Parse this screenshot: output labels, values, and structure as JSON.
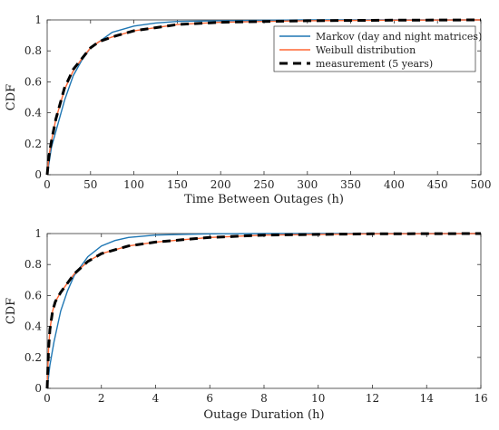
{
  "chart_data": [
    {
      "type": "line",
      "xlabel": "Time Between Outages (h)",
      "ylabel": "CDF",
      "xlim": [
        0,
        500
      ],
      "ylim": [
        0,
        1
      ],
      "xticks": [
        0,
        50,
        100,
        150,
        200,
        250,
        300,
        350,
        400,
        450,
        500
      ],
      "yticks": [
        0,
        0.2,
        0.4,
        0.6,
        0.8,
        1
      ],
      "ytick_labels": [
        "0",
        "0.2",
        "0.4",
        "0.6",
        "0.8",
        "1"
      ],
      "grid": false,
      "legend_position": "top-right",
      "series": [
        {
          "name": "Markov (day and night matrices)",
          "color": "#1f77b4",
          "dash": "solid",
          "x": [
            0,
            5,
            10,
            20,
            30,
            40,
            50,
            60,
            75,
            100,
            125,
            150,
            200,
            300,
            500
          ],
          "y": [
            0,
            0.18,
            0.28,
            0.48,
            0.64,
            0.74,
            0.82,
            0.86,
            0.92,
            0.96,
            0.98,
            0.99,
            0.995,
            1.0,
            1.0
          ]
        },
        {
          "name": "Weibull distribution",
          "color": "#ff6633",
          "dash": "solid",
          "x": [
            0,
            2,
            5,
            10,
            20,
            30,
            40,
            50,
            60,
            75,
            100,
            125,
            150,
            200,
            250,
            300,
            400,
            500
          ],
          "y": [
            0,
            0.12,
            0.22,
            0.36,
            0.55,
            0.67,
            0.75,
            0.82,
            0.86,
            0.89,
            0.93,
            0.95,
            0.97,
            0.985,
            0.99,
            0.995,
            0.998,
            1.0
          ]
        },
        {
          "name": "measurement (5 years)",
          "color": "#000000",
          "dash": "dashed",
          "x": [
            0,
            2,
            5,
            10,
            20,
            30,
            40,
            50,
            60,
            75,
            100,
            125,
            150,
            200,
            250,
            300,
            400,
            500
          ],
          "y": [
            0,
            0.12,
            0.22,
            0.36,
            0.56,
            0.68,
            0.75,
            0.82,
            0.86,
            0.89,
            0.93,
            0.95,
            0.97,
            0.985,
            0.99,
            0.995,
            0.998,
            1.0
          ]
        }
      ]
    },
    {
      "type": "line",
      "xlabel": "Outage Duration (h)",
      "ylabel": "CDF",
      "xlim": [
        0,
        16
      ],
      "ylim": [
        0,
        1
      ],
      "xticks": [
        0,
        2,
        4,
        6,
        8,
        10,
        12,
        14,
        16
      ],
      "yticks": [
        0,
        0.2,
        0.4,
        0.6,
        0.8,
        1
      ],
      "ytick_labels": [
        "0",
        "0.2",
        "0.4",
        "0.6",
        "0.8",
        "1"
      ],
      "grid": false,
      "series": [
        {
          "name": "Markov (day and night matrices)",
          "color": "#1f77b4",
          "dash": "solid",
          "x": [
            0,
            0.1,
            0.25,
            0.5,
            0.75,
            1,
            1.5,
            2,
            2.5,
            3,
            4,
            5,
            6,
            8,
            10,
            16
          ],
          "y": [
            0,
            0.15,
            0.3,
            0.5,
            0.63,
            0.73,
            0.85,
            0.92,
            0.955,
            0.975,
            0.99,
            0.995,
            0.998,
            1.0,
            1.0,
            1.0
          ]
        },
        {
          "name": "Weibull distribution",
          "color": "#ff6633",
          "dash": "solid",
          "x": [
            0,
            0.05,
            0.1,
            0.2,
            0.3,
            0.5,
            0.75,
            1,
            1.5,
            2,
            3,
            4,
            5,
            6,
            8,
            10,
            12,
            16
          ],
          "y": [
            0,
            0.25,
            0.38,
            0.5,
            0.56,
            0.62,
            0.68,
            0.74,
            0.82,
            0.87,
            0.92,
            0.945,
            0.96,
            0.975,
            0.99,
            0.995,
            0.998,
            1.0
          ]
        },
        {
          "name": "measurement (5 years)",
          "color": "#000000",
          "dash": "dashed",
          "x": [
            0,
            0.05,
            0.1,
            0.2,
            0.3,
            0.5,
            0.75,
            1,
            1.5,
            2,
            3,
            4,
            5,
            6,
            8,
            10,
            12,
            16
          ],
          "y": [
            0,
            0.25,
            0.38,
            0.5,
            0.56,
            0.62,
            0.68,
            0.74,
            0.82,
            0.87,
            0.92,
            0.945,
            0.96,
            0.975,
            0.99,
            0.995,
            0.998,
            1.0
          ]
        }
      ]
    }
  ]
}
